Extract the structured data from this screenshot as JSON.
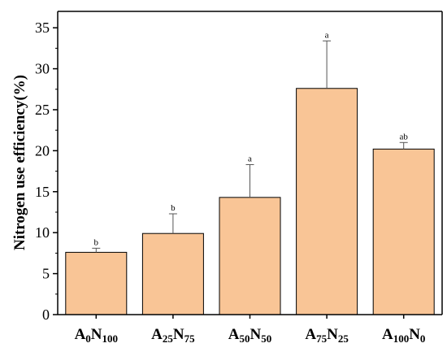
{
  "chart_data": {
    "type": "bar",
    "title": "",
    "xlabel": "",
    "ylabel": "Nitrogen use efficiency(%)",
    "ylim": [
      0,
      37
    ],
    "yticks": [
      0,
      5,
      10,
      15,
      20,
      25,
      30,
      35
    ],
    "grid": false,
    "categories": [
      {
        "label": "A0N100",
        "parts": [
          [
            "A",
            ""
          ],
          [
            "0",
            "sub"
          ],
          [
            "N",
            ""
          ],
          [
            "100",
            "sub"
          ]
        ]
      },
      {
        "label": "A25N75",
        "parts": [
          [
            "A",
            ""
          ],
          [
            "25",
            "sub"
          ],
          [
            "N",
            ""
          ],
          [
            "75",
            "sub"
          ]
        ]
      },
      {
        "label": "A50N50",
        "parts": [
          [
            "A",
            ""
          ],
          [
            "50",
            "sub"
          ],
          [
            "N",
            ""
          ],
          [
            "50",
            "sub"
          ]
        ]
      },
      {
        "label": "A75N25",
        "parts": [
          [
            "A",
            ""
          ],
          [
            "75",
            "sub"
          ],
          [
            "N",
            ""
          ],
          [
            "25",
            "sub"
          ]
        ]
      },
      {
        "label": "A100N0",
        "parts": [
          [
            "A",
            ""
          ],
          [
            "100",
            "sub"
          ],
          [
            "N",
            ""
          ],
          [
            "0",
            "sub"
          ]
        ]
      }
    ],
    "values": [
      7.6,
      9.9,
      14.3,
      27.6,
      20.2
    ],
    "errors": [
      0.5,
      2.4,
      4.0,
      5.8,
      0.8
    ],
    "significance_labels": [
      "b",
      "b",
      "a",
      "a",
      "ab"
    ],
    "bar_color": "#f9c596",
    "bar_edge_color": "#000000"
  }
}
